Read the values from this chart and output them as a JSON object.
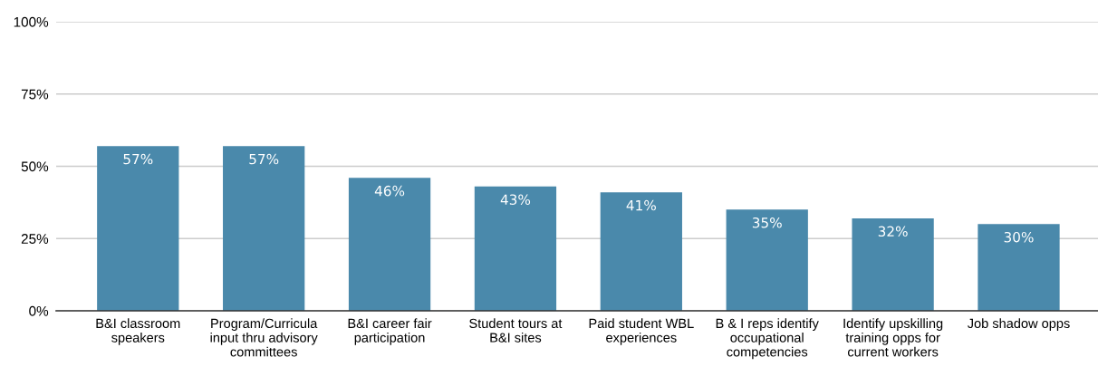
{
  "chart_data": {
    "type": "bar",
    "categories": [
      "B&I classroom\nspeakers",
      "Program/Curricula\ninput thru advisory\ncommittees",
      "B&I career fair\nparticipation",
      "Student tours at\nB&I sites",
      "Paid student WBL\nexperiences",
      "B & I reps identify\noccupational\ncompetencies",
      "Identify upskilling\ntraining opps for\ncurrent workers",
      "Job shadow opps"
    ],
    "values": [
      57,
      57,
      46,
      43,
      41,
      35,
      32,
      30
    ],
    "value_labels": [
      "57%",
      "57%",
      "46%",
      "43%",
      "41%",
      "35%",
      "32%",
      "30%"
    ],
    "color": "#4a89ab",
    "ylim": [
      0,
      100
    ],
    "yticks": [
      {
        "value": 0,
        "label": "0%"
      },
      {
        "value": 25,
        "label": "25%"
      },
      {
        "value": 50,
        "label": "50%"
      },
      {
        "value": 75,
        "label": "75%"
      },
      {
        "value": 100,
        "label": "100%"
      }
    ],
    "grid": "y",
    "legend": false
  }
}
